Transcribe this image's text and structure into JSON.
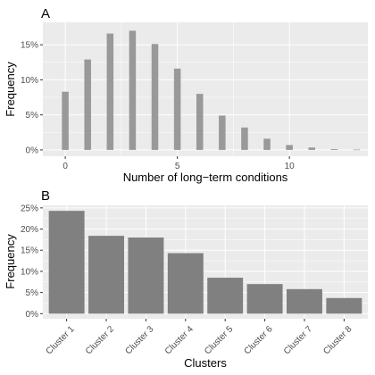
{
  "chart_data": [
    {
      "type": "bar",
      "panel_label": "A",
      "xlabel": "Number of long−term conditions",
      "ylabel": "Frequency",
      "x": [
        0,
        1,
        2,
        3,
        4,
        5,
        6,
        7,
        8,
        9,
        10,
        11,
        12,
        13
      ],
      "values": [
        8.3,
        12.9,
        16.6,
        17.0,
        15.1,
        11.6,
        8.0,
        4.9,
        3.2,
        1.6,
        0.7,
        0.35,
        0.12,
        0.05
      ],
      "xlim": [
        -1,
        13.5
      ],
      "ylim": [
        -0.9,
        18.2
      ],
      "xticks": [
        0,
        5,
        10
      ],
      "xtick_labels": [
        "0",
        "5",
        "10"
      ],
      "yticks": [
        0,
        5,
        10,
        15
      ],
      "ytick_labels": [
        "0%",
        "5%",
        "10%",
        "15%"
      ],
      "grid": true,
      "bar_color": "#999999"
    },
    {
      "type": "bar",
      "panel_label": "B",
      "xlabel": "Clusters",
      "ylabel": "Frequency",
      "categories": [
        "Cluster 1",
        "Cluster 2",
        "Cluster 3",
        "Cluster 4",
        "Cluster 5",
        "Cluster 6",
        "Cluster 7",
        "Cluster 8"
      ],
      "values": [
        24.3,
        18.4,
        18.0,
        14.3,
        8.5,
        7.0,
        5.8,
        3.7
      ],
      "ylim": [
        -1.2,
        25.6
      ],
      "yticks": [
        0,
        5,
        10,
        15,
        20,
        25
      ],
      "ytick_labels": [
        "0%",
        "5%",
        "10%",
        "15%",
        "20%",
        "25%"
      ],
      "grid": true,
      "bar_color": "#808080"
    }
  ],
  "colors": {
    "panel_background": "#ebebeb",
    "grid_major": "#ffffff",
    "tick_text": "#4d4d4d"
  }
}
